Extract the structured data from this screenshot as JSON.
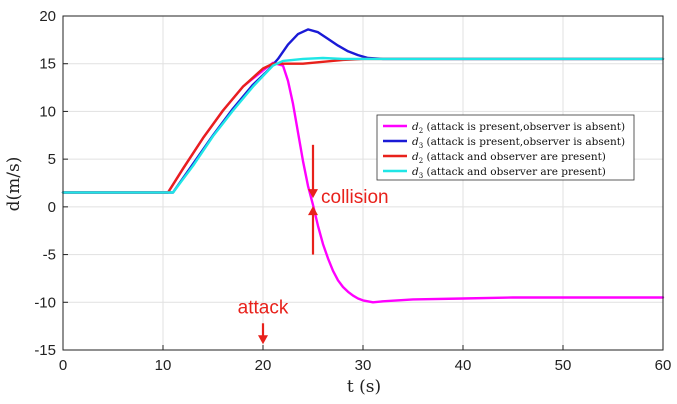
{
  "chart_data": {
    "type": "line",
    "xlabel": "t (s)",
    "ylabel": "d(m/s)",
    "xlim": [
      0,
      60
    ],
    "ylim": [
      -15,
      20
    ],
    "xticks": [
      0,
      10,
      20,
      30,
      40,
      50,
      60
    ],
    "yticks": [
      -15,
      -10,
      -5,
      0,
      5,
      10,
      15,
      20
    ],
    "grid": true,
    "legend_position": "right-center",
    "series": [
      {
        "name": "d2 (attack is present,observer is absent)",
        "color": "#ff00ff",
        "x": [
          0,
          10.5,
          12,
          14,
          16,
          18,
          20,
          21,
          22,
          22.5,
          23,
          23.5,
          24,
          24.5,
          25,
          25.5,
          26,
          26.5,
          27,
          27.5,
          28,
          28.5,
          29,
          29.5,
          30,
          31,
          32,
          35,
          40,
          45,
          50,
          55,
          60
        ],
        "y": [
          1.5,
          1.5,
          4,
          7.2,
          10.1,
          12.6,
          14.3,
          15.1,
          14.8,
          13.2,
          10.8,
          7.8,
          4.8,
          2.2,
          0.2,
          -2,
          -3.9,
          -5.4,
          -6.7,
          -7.7,
          -8.4,
          -8.9,
          -9.3,
          -9.6,
          -9.8,
          -10,
          -9.9,
          -9.7,
          -9.6,
          -9.5,
          -9.5,
          -9.5,
          -9.5
        ]
      },
      {
        "name": "d3 (attack is present,observer is absent)",
        "color": "#1a1ad6",
        "x": [
          0,
          11,
          13,
          15,
          17,
          19,
          20.5,
          21.5,
          22.5,
          23.5,
          24.5,
          25.5,
          26.5,
          27.5,
          28.5,
          29.5,
          30.5,
          32,
          35,
          40,
          50,
          60
        ],
        "y": [
          1.5,
          1.5,
          4.5,
          7.5,
          10.3,
          12.8,
          14.3,
          15.5,
          17,
          18.1,
          18.6,
          18.3,
          17.6,
          16.9,
          16.3,
          15.9,
          15.6,
          15.5,
          15.5,
          15.5,
          15.5,
          15.5
        ]
      },
      {
        "name": "d2 (attack and observer are present)",
        "color": "#e8211b",
        "x": [
          0,
          10.5,
          12,
          14,
          16,
          18,
          20,
          21,
          22,
          24,
          26,
          28,
          30,
          35,
          40,
          50,
          60
        ],
        "y": [
          1.5,
          1.5,
          4,
          7.2,
          10.1,
          12.6,
          14.5,
          15,
          15,
          15,
          15.2,
          15.4,
          15.5,
          15.5,
          15.5,
          15.5,
          15.5
        ]
      },
      {
        "name": "d3 (attack and observer are present)",
        "color": "#1fe6e6",
        "x": [
          0,
          11,
          13,
          15,
          17,
          19,
          21,
          22,
          24,
          26,
          28,
          30,
          35,
          40,
          50,
          60
        ],
        "y": [
          1.5,
          1.5,
          4.3,
          7.4,
          10.1,
          12.6,
          14.8,
          15.3,
          15.5,
          15.6,
          15.5,
          15.5,
          15.5,
          15.5,
          15.5,
          15.5
        ]
      }
    ],
    "legend": [
      {
        "sym": "d",
        "sub": "2",
        "text": "(attack is present,observer is absent)",
        "color": "#ff00ff"
      },
      {
        "sym": "d",
        "sub": "3",
        "text": "(attack is present,observer is absent)",
        "color": "#1a1ad6"
      },
      {
        "sym": "d",
        "sub": "2",
        "text": "(attack and observer are present)",
        "color": "#e8211b"
      },
      {
        "sym": "d",
        "sub": "3",
        "text": "(attack and observer are present)",
        "color": "#1fe6e6"
      }
    ],
    "annotations": [
      {
        "text": "collision",
        "x": 25,
        "y": 0.5
      },
      {
        "text": "attack",
        "x": 20,
        "y": -12
      }
    ]
  }
}
